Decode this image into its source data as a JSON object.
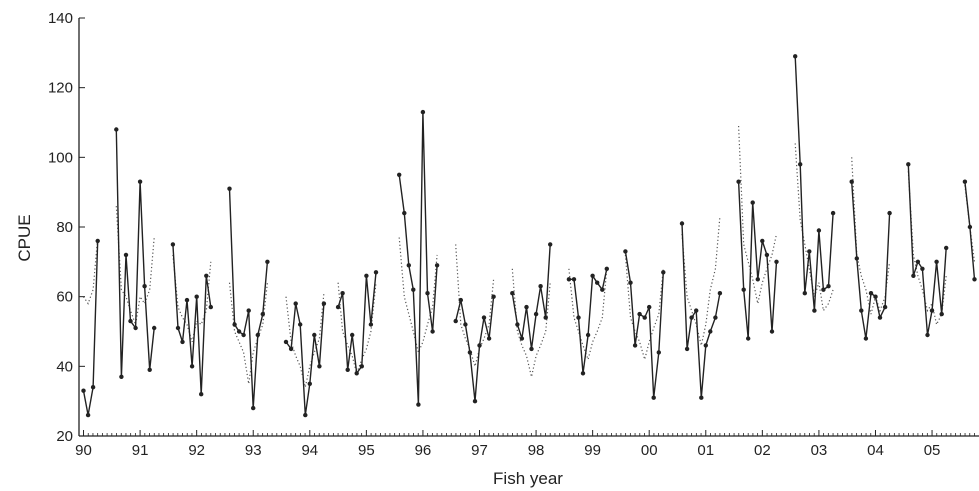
{
  "chart_data": {
    "type": "line",
    "xlabel": "Fish year",
    "ylabel": "CPUE",
    "ylim": [
      20,
      140
    ],
    "yticks": [
      20,
      40,
      60,
      80,
      100,
      120,
      140
    ],
    "xticks": [
      "90",
      "91",
      "92",
      "93",
      "94",
      "95",
      "96",
      "97",
      "98",
      "99",
      "00",
      "01",
      "02",
      "03",
      "04",
      "05"
    ],
    "grid": false,
    "legend": "none",
    "colors": {
      "observed": "#222222",
      "fitted": "#555555"
    },
    "series": [
      {
        "style": "solid-with-markers",
        "segments": [
          {
            "x": [
              1990.0,
              1990.08,
              1990.17,
              1990.25
            ],
            "y": [
              33,
              26,
              34,
              76
            ]
          },
          {
            "x": [
              1990.58,
              1990.67,
              1990.75,
              1990.83,
              1990.92,
              1991.0,
              1991.08,
              1991.17,
              1991.25
            ],
            "y": [
              108,
              37,
              72,
              53,
              51,
              93,
              63,
              39,
              51
            ]
          },
          {
            "x": [
              1991.58,
              1991.67,
              1991.75,
              1991.83,
              1991.92,
              1992.0,
              1992.08,
              1992.17,
              1992.25
            ],
            "y": [
              75,
              51,
              47,
              59,
              40,
              60,
              32,
              66,
              57
            ]
          },
          {
            "x": [
              1992.58,
              1992.67,
              1992.75,
              1992.83,
              1992.92,
              1993.0,
              1993.08,
              1993.17,
              1993.25
            ],
            "y": [
              91,
              52,
              50,
              49,
              56,
              28,
              49,
              55,
              70
            ]
          },
          {
            "x": [
              1993.58,
              1993.67,
              1993.75,
              1993.83,
              1993.92,
              1994.0,
              1994.08,
              1994.17,
              1994.25
            ],
            "y": [
              47,
              45,
              58,
              52,
              26,
              35,
              49,
              40,
              58
            ]
          },
          {
            "x": [
              1994.5,
              1994.58,
              1994.67,
              1994.75,
              1994.83,
              1994.92,
              1995.0,
              1995.08,
              1995.17
            ],
            "y": [
              57,
              61,
              39,
              49,
              38,
              40,
              66,
              52,
              67
            ]
          },
          {
            "x": [
              1995.58,
              1995.67,
              1995.75,
              1995.83,
              1995.92,
              1996.0,
              1996.08,
              1996.17,
              1996.25
            ],
            "y": [
              95,
              84,
              69,
              62,
              29,
              113,
              61,
              50,
              69
            ]
          },
          {
            "x": [
              1996.58,
              1996.67,
              1996.75,
              1996.83,
              1996.92,
              1997.0,
              1997.08,
              1997.17,
              1997.25
            ],
            "y": [
              53,
              59,
              52,
              44,
              30,
              46,
              54,
              48,
              60
            ]
          },
          {
            "x": [
              1997.58,
              1997.67,
              1997.75,
              1997.83,
              1997.92,
              1998.0,
              1998.08,
              1998.17,
              1998.25
            ],
            "y": [
              61,
              52,
              48,
              57,
              45,
              55,
              63,
              54,
              75
            ]
          },
          {
            "x": [
              1998.58,
              1998.67,
              1998.75,
              1998.83,
              1998.92,
              1999.0,
              1999.08,
              1999.17,
              1999.25
            ],
            "y": [
              65,
              65,
              54,
              38,
              49,
              66,
              64,
              62,
              68
            ]
          },
          {
            "x": [
              1999.58,
              1999.67,
              1999.75,
              1999.83,
              1999.92,
              2000.0,
              2000.08,
              2000.17,
              2000.25
            ],
            "y": [
              73,
              64,
              46,
              55,
              54,
              57,
              31,
              44,
              67
            ]
          },
          {
            "x": [
              2000.58,
              2000.67,
              2000.75,
              2000.83,
              2000.92,
              2001.0,
              2001.08,
              2001.17,
              2001.25
            ],
            "y": [
              81,
              45,
              54,
              56,
              31,
              46,
              50,
              54,
              61
            ]
          },
          {
            "x": [
              2001.58,
              2001.67,
              2001.75,
              2001.83,
              2001.92,
              2002.0,
              2002.08,
              2002.17,
              2002.25
            ],
            "y": [
              93,
              62,
              48,
              87,
              65,
              76,
              72,
              50,
              70
            ]
          },
          {
            "x": [
              2002.58,
              2002.67,
              2002.75,
              2002.83,
              2002.92,
              2003.0,
              2003.08,
              2003.17,
              2003.25
            ],
            "y": [
              129,
              98,
              61,
              73,
              56,
              79,
              62,
              63,
              84
            ]
          },
          {
            "x": [
              2003.58,
              2003.67,
              2003.75,
              2003.83,
              2003.92,
              2004.0,
              2004.08,
              2004.17,
              2004.25
            ],
            "y": [
              93,
              71,
              56,
              48,
              61,
              60,
              54,
              57,
              84
            ]
          },
          {
            "x": [
              2004.58,
              2004.67,
              2004.75,
              2004.83,
              2004.92,
              2005.0,
              2005.08,
              2005.17,
              2005.25
            ],
            "y": [
              98,
              66,
              70,
              68,
              49,
              56,
              70,
              55,
              74
            ]
          },
          {
            "x": [
              2005.58,
              2005.67,
              2005.75
            ],
            "y": [
              93,
              80,
              65
            ]
          }
        ]
      },
      {
        "style": "dotted",
        "segments": [
          {
            "x": [
              1990.0,
              1990.08,
              1990.17,
              1990.25
            ],
            "y": [
              60,
              58,
              62,
              77
            ]
          },
          {
            "x": [
              1990.58,
              1990.67,
              1990.75,
              1990.83,
              1990.92,
              1991.0,
              1991.08,
              1991.17,
              1991.25
            ],
            "y": [
              86,
              62,
              60,
              56,
              52,
              60,
              58,
              62,
              77
            ]
          },
          {
            "x": [
              1991.58,
              1991.67,
              1991.75,
              1991.83,
              1991.92,
              1992.0,
              1992.08,
              1992.17,
              1992.25
            ],
            "y": [
              72,
              57,
              54,
              52,
              47,
              53,
              52,
              56,
              70
            ]
          },
          {
            "x": [
              1992.58,
              1992.67,
              1992.75,
              1992.83,
              1992.92,
              1993.0,
              1993.08,
              1993.17,
              1993.25
            ],
            "y": [
              64,
              50,
              47,
              44,
              35,
              44,
              48,
              52,
              64
            ]
          },
          {
            "x": [
              1993.58,
              1993.67,
              1993.75,
              1993.83,
              1993.92,
              1994.0,
              1994.08,
              1994.17,
              1994.25
            ],
            "y": [
              60,
              47,
              43,
              40,
              34,
              40,
              44,
              48,
              61
            ]
          },
          {
            "x": [
              1994.5,
              1994.58,
              1994.67,
              1994.75,
              1994.83,
              1994.92,
              1995.0,
              1995.08,
              1995.17
            ],
            "y": [
              64,
              50,
              46,
              43,
              38,
              42,
              45,
              50,
              64
            ]
          },
          {
            "x": [
              1995.58,
              1995.67,
              1995.75,
              1995.83,
              1995.92,
              1996.0,
              1996.08,
              1996.17,
              1996.25
            ],
            "y": [
              77,
              60,
              55,
              50,
              44,
              47,
              52,
              57,
              72
            ]
          },
          {
            "x": [
              1996.58,
              1996.67,
              1996.75,
              1996.83,
              1996.92,
              1997.0,
              1997.08,
              1997.17,
              1997.25
            ],
            "y": [
              75,
              52,
              48,
              45,
              40,
              45,
              48,
              52,
              65
            ]
          },
          {
            "x": [
              1997.58,
              1997.67,
              1997.75,
              1997.83,
              1997.92,
              1998.0,
              1998.08,
              1998.17,
              1998.25
            ],
            "y": [
              68,
              50,
              46,
              43,
              37,
              43,
              46,
              50,
              64
            ]
          },
          {
            "x": [
              1998.58,
              1998.67,
              1998.75,
              1998.83,
              1998.92,
              1999.0,
              1999.08,
              1999.17,
              1999.25
            ],
            "y": [
              68,
              54,
              50,
              46,
              42,
              47,
              50,
              54,
              68
            ]
          },
          {
            "x": [
              1999.58,
              1999.67,
              1999.75,
              1999.83,
              1999.92,
              2000.0,
              2000.08,
              2000.17,
              2000.25
            ],
            "y": [
              72,
              54,
              50,
              47,
              42,
              47,
              51,
              55,
              68
            ]
          },
          {
            "x": [
              2000.58,
              2000.67,
              2000.75,
              2000.83,
              2000.92,
              2001.0,
              2001.08,
              2001.17,
              2001.25
            ],
            "y": [
              78,
              60,
              56,
              52,
              46,
              52,
              62,
              68,
              83
            ]
          },
          {
            "x": [
              2001.58,
              2001.67,
              2001.75,
              2001.83,
              2001.92,
              2002.0,
              2002.08,
              2002.17,
              2002.25
            ],
            "y": [
              109,
              75,
              70,
              65,
              58,
              64,
              68,
              72,
              78
            ]
          },
          {
            "x": [
              2002.58,
              2002.67,
              2002.75,
              2002.83,
              2002.92,
              2003.0,
              2003.08,
              2003.17,
              2003.25
            ],
            "y": [
              104,
              82,
              75,
              68,
              60,
              64,
              56,
              58,
              62
            ]
          },
          {
            "x": [
              2003.58,
              2003.67,
              2003.75,
              2003.83,
              2003.92,
              2004.0,
              2004.08,
              2004.17,
              2004.25
            ],
            "y": [
              100,
              72,
              66,
              62,
              55,
              60,
              56,
              60,
              70
            ]
          },
          {
            "x": [
              2004.58,
              2004.67,
              2004.75,
              2004.83,
              2004.92,
              2005.0,
              2005.08,
              2005.17,
              2005.25
            ],
            "y": [
              96,
              72,
              66,
              62,
              56,
              58,
              52,
              55,
              66
            ]
          },
          {
            "x": [
              2005.58,
              2005.67,
              2005.75
            ],
            "y": [
              92,
              80,
              70
            ]
          }
        ]
      }
    ]
  }
}
